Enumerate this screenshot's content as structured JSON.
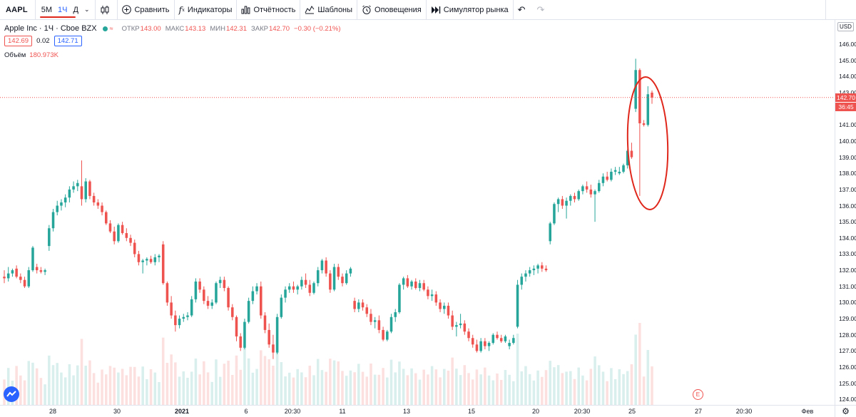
{
  "toolbar": {
    "symbol": "AAPL",
    "timeframes": [
      "5М",
      "1Ч",
      "Д"
    ],
    "active_timeframe_index": 1,
    "compare_label": "Сравнить",
    "indicators_label": "Индикаторы",
    "financials_label": "Отчётность",
    "templates_label": "Шаблоны",
    "alerts_label": "Оповещения",
    "simulator_label": "Симулятор рынка"
  },
  "legend": {
    "title": "Apple Inc · 1Ч · Cboe BZX",
    "open_label": "ОТКР",
    "open": "143.00",
    "high_label": "МАКС",
    "high": "143.13",
    "low_label": "МИН",
    "low": "142.31",
    "close_label": "ЗАКР",
    "close": "142.70",
    "change": "−0.30 (−0.21%)",
    "bid": "142.69",
    "spread": "0.02",
    "ask": "142.71",
    "volume_label": "Объём",
    "volume": "180.973K"
  },
  "price_axis": {
    "currency": "USD",
    "ticks": [
      "146.00",
      "145.00",
      "144.00",
      "143.00",
      "142.00",
      "141.00",
      "140.00",
      "139.00",
      "138.00",
      "137.00",
      "136.00",
      "135.00",
      "134.00",
      "133.00",
      "132.00",
      "131.00",
      "130.00",
      "129.00",
      "128.00",
      "127.00",
      "126.00",
      "125.00",
      "124.00"
    ],
    "last_price": "142.70",
    "countdown": "36:45"
  },
  "time_axis": {
    "ticks": [
      "28",
      "30",
      "2021",
      "6",
      "20:30",
      "11",
      "13",
      "15",
      "20",
      "20:30",
      "25",
      "27",
      "20:30",
      "Фев"
    ]
  },
  "event_marker": "E",
  "colors": {
    "up": "#26a69a",
    "down": "#ef5350",
    "accent": "#2962ff",
    "annotation": "#e0271b"
  },
  "chart_data": {
    "type": "candlestick",
    "series_name": "AAPL 1Ч",
    "ylim": [
      124,
      146.5
    ],
    "x_labels": [
      "28",
      "30",
      "2021",
      "6",
      "20:30",
      "11",
      "13",
      "15",
      "20",
      "20:30",
      "25",
      "27",
      "20:30",
      "Фев"
    ],
    "candles": [
      [
        131.6,
        132.0,
        131.2,
        131.5
      ],
      [
        131.5,
        132.2,
        131.3,
        131.8
      ],
      [
        131.8,
        132.1,
        131.6,
        132.0
      ],
      [
        132.1,
        132.3,
        131.5,
        131.6
      ],
      [
        131.6,
        131.8,
        131.2,
        131.4
      ],
      [
        131.4,
        131.6,
        130.9,
        131.0
      ],
      [
        131.0,
        132.2,
        130.9,
        132.0
      ],
      [
        132.0,
        133.5,
        131.9,
        133.4
      ],
      [
        132.2,
        132.4,
        131.8,
        132.0
      ],
      [
        132.0,
        132.2,
        131.8,
        131.9
      ],
      [
        131.9,
        132.1,
        131.7,
        132.0
      ],
      [
        133.5,
        134.8,
        133.2,
        134.6
      ],
      [
        134.6,
        135.8,
        134.4,
        135.6
      ],
      [
        135.6,
        136.3,
        135.4,
        136.0
      ],
      [
        136.0,
        136.4,
        135.7,
        136.2
      ],
      [
        136.2,
        136.7,
        135.9,
        136.5
      ],
      [
        136.5,
        137.2,
        136.2,
        137.0
      ],
      [
        137.0,
        137.5,
        136.8,
        137.2
      ],
      [
        137.2,
        137.6,
        136.9,
        137.4
      ],
      [
        137.2,
        138.8,
        136.0,
        136.4
      ],
      [
        136.4,
        137.7,
        136.2,
        137.5
      ],
      [
        137.5,
        137.6,
        136.4,
        136.6
      ],
      [
        136.6,
        136.8,
        136.0,
        136.2
      ],
      [
        136.2,
        136.4,
        135.8,
        136.0
      ],
      [
        136.0,
        136.2,
        135.4,
        135.6
      ],
      [
        135.6,
        135.7,
        134.8,
        134.9
      ],
      [
        134.9,
        135.1,
        134.3,
        134.4
      ],
      [
        134.4,
        134.7,
        133.6,
        133.8
      ],
      [
        133.8,
        134.9,
        133.7,
        134.8
      ],
      [
        134.8,
        135.0,
        134.2,
        134.3
      ],
      [
        134.3,
        134.6,
        133.8,
        134.0
      ],
      [
        134.0,
        134.2,
        133.5,
        133.7
      ],
      [
        133.7,
        133.9,
        132.8,
        133.0
      ],
      [
        133.0,
        133.2,
        132.3,
        132.5
      ],
      [
        132.5,
        132.7,
        131.8,
        132.6
      ],
      [
        132.6,
        132.8,
        132.3,
        132.7
      ],
      [
        132.7,
        132.9,
        132.4,
        132.5
      ],
      [
        132.5,
        133.0,
        132.3,
        132.8
      ],
      [
        132.8,
        133.0,
        132.5,
        132.9
      ],
      [
        133.6,
        133.8,
        131.1,
        131.2
      ],
      [
        131.2,
        131.3,
        129.8,
        130.0
      ],
      [
        130.0,
        130.4,
        129.0,
        129.2
      ],
      [
        129.2,
        129.5,
        128.2,
        128.6
      ],
      [
        128.6,
        129.2,
        128.4,
        129.0
      ],
      [
        129.0,
        129.3,
        128.8,
        129.1
      ],
      [
        129.1,
        129.4,
        128.9,
        129.2
      ],
      [
        129.2,
        130.4,
        129.1,
        130.2
      ],
      [
        130.2,
        131.5,
        130.0,
        131.3
      ],
      [
        131.3,
        131.5,
        130.6,
        130.8
      ],
      [
        130.8,
        131.0,
        129.9,
        130.1
      ],
      [
        130.1,
        130.4,
        129.6,
        129.8
      ],
      [
        129.8,
        130.2,
        129.6,
        130.0
      ],
      [
        130.0,
        131.3,
        129.9,
        131.2
      ],
      [
        131.2,
        131.6,
        130.9,
        131.4
      ],
      [
        131.4,
        131.6,
        130.7,
        130.9
      ],
      [
        130.9,
        131.0,
        129.5,
        129.7
      ],
      [
        129.7,
        129.9,
        128.9,
        129.1
      ],
      [
        129.1,
        129.2,
        127.6,
        127.9
      ],
      [
        127.9,
        128.1,
        127.0,
        127.2
      ],
      [
        127.2,
        129.0,
        127.1,
        128.8
      ],
      [
        128.8,
        130.3,
        128.7,
        130.1
      ],
      [
        130.1,
        131.0,
        129.9,
        130.7
      ],
      [
        130.7,
        131.2,
        130.5,
        131.0
      ],
      [
        131.0,
        131.3,
        129.0,
        129.2
      ],
      [
        129.2,
        129.4,
        128.1,
        128.3
      ],
      [
        128.3,
        128.7,
        127.2,
        127.4
      ],
      [
        127.4,
        128.0,
        126.5,
        126.9
      ],
      [
        126.9,
        129.3,
        126.8,
        129.1
      ],
      [
        129.1,
        130.5,
        129.0,
        130.3
      ],
      [
        130.3,
        131.0,
        130.0,
        130.8
      ],
      [
        130.8,
        131.2,
        130.6,
        131.0
      ],
      [
        131.0,
        131.3,
        130.6,
        130.8
      ],
      [
        130.8,
        131.1,
        130.5,
        131.0
      ],
      [
        131.0,
        131.6,
        130.8,
        131.4
      ],
      [
        131.4,
        131.8,
        130.9,
        131.1
      ],
      [
        131.1,
        131.4,
        130.4,
        130.6
      ],
      [
        130.6,
        131.3,
        130.5,
        131.2
      ],
      [
        131.2,
        132.2,
        131.0,
        132.0
      ],
      [
        132.0,
        132.7,
        131.8,
        132.6
      ],
      [
        132.6,
        132.8,
        131.6,
        131.8
      ],
      [
        131.8,
        132.0,
        130.6,
        130.8
      ],
      [
        130.8,
        132.4,
        130.7,
        132.2
      ],
      [
        132.2,
        132.4,
        131.4,
        131.6
      ],
      [
        131.6,
        131.8,
        131.0,
        131.2
      ],
      [
        131.2,
        132.0,
        131.1,
        131.8
      ],
      [
        131.8,
        132.2,
        131.6,
        132.1
      ],
      [
        130.1,
        130.3,
        129.4,
        129.6
      ],
      [
        129.6,
        130.2,
        129.4,
        130.0
      ],
      [
        130.0,
        130.2,
        129.5,
        129.7
      ],
      [
        129.7,
        129.9,
        129.1,
        129.3
      ],
      [
        129.3,
        129.6,
        128.6,
        128.8
      ],
      [
        128.8,
        129.1,
        128.4,
        128.9
      ],
      [
        128.9,
        129.2,
        128.1,
        128.3
      ],
      [
        128.3,
        128.5,
        127.6,
        127.7
      ],
      [
        127.7,
        128.3,
        127.6,
        128.2
      ],
      [
        128.2,
        129.3,
        128.1,
        129.1
      ],
      [
        129.1,
        129.6,
        128.8,
        129.4
      ],
      [
        129.4,
        131.2,
        129.3,
        131.1
      ],
      [
        131.1,
        131.6,
        130.8,
        131.5
      ],
      [
        131.5,
        131.7,
        130.9,
        131.0
      ],
      [
        131.0,
        131.4,
        130.8,
        131.3
      ],
      [
        131.3,
        131.5,
        130.8,
        130.9
      ],
      [
        130.9,
        131.4,
        130.7,
        131.2
      ],
      [
        131.2,
        131.4,
        130.7,
        130.8
      ],
      [
        130.8,
        131.0,
        130.2,
        130.4
      ],
      [
        130.4,
        130.8,
        130.1,
        130.5
      ],
      [
        130.5,
        130.7,
        129.8,
        130.0
      ],
      [
        130.0,
        130.2,
        129.4,
        129.6
      ],
      [
        129.6,
        130.0,
        129.3,
        129.8
      ],
      [
        129.8,
        130.0,
        129.0,
        129.2
      ],
      [
        129.2,
        129.5,
        128.3,
        128.5
      ],
      [
        128.5,
        128.8,
        127.9,
        128.6
      ],
      [
        128.6,
        129.3,
        128.4,
        128.7
      ],
      [
        128.7,
        128.9,
        128.0,
        128.2
      ],
      [
        128.2,
        128.4,
        127.6,
        127.8
      ],
      [
        127.8,
        128.0,
        127.2,
        127.4
      ],
      [
        127.4,
        127.7,
        126.9,
        127.0
      ],
      [
        127.0,
        127.8,
        126.9,
        127.6
      ],
      [
        127.6,
        127.8,
        127.1,
        127.3
      ],
      [
        127.3,
        127.6,
        127.0,
        127.5
      ],
      [
        127.5,
        128.1,
        127.4,
        128.0
      ],
      [
        128.0,
        128.2,
        127.7,
        127.8
      ],
      [
        127.8,
        128.0,
        127.5,
        127.6
      ],
      [
        127.6,
        128.0,
        127.5,
        127.9
      ],
      [
        127.3,
        127.7,
        127.1,
        127.5
      ],
      [
        127.5,
        128.0,
        127.4,
        127.8
      ],
      [
        128.5,
        131.4,
        128.4,
        131.1
      ],
      [
        131.1,
        131.8,
        130.8,
        131.6
      ],
      [
        131.6,
        132.0,
        131.3,
        131.8
      ],
      [
        131.8,
        132.2,
        131.6,
        132.0
      ],
      [
        132.0,
        132.3,
        131.7,
        132.1
      ],
      [
        132.1,
        132.4,
        131.8,
        132.3
      ],
      [
        132.3,
        132.5,
        131.9,
        132.1
      ],
      [
        132.1,
        132.3,
        131.9,
        132.0
      ],
      [
        133.8,
        135.0,
        133.6,
        134.9
      ],
      [
        134.9,
        136.2,
        134.8,
        136.1
      ],
      [
        136.1,
        136.5,
        135.6,
        136.4
      ],
      [
        136.4,
        136.6,
        135.8,
        136.0
      ],
      [
        136.0,
        136.5,
        135.2,
        136.3
      ],
      [
        136.3,
        136.7,
        136.0,
        136.6
      ],
      [
        136.6,
        136.8,
        136.2,
        136.4
      ],
      [
        136.4,
        137.0,
        136.3,
        136.9
      ],
      [
        136.9,
        137.3,
        136.7,
        137.2
      ],
      [
        137.2,
        137.5,
        136.8,
        137.0
      ],
      [
        137.0,
        137.3,
        136.5,
        136.7
      ],
      [
        136.7,
        137.0,
        135.0,
        136.9
      ],
      [
        136.9,
        137.6,
        136.8,
        137.4
      ],
      [
        137.4,
        138.0,
        137.2,
        137.8
      ],
      [
        137.8,
        138.1,
        137.5,
        137.6
      ],
      [
        137.6,
        138.3,
        137.5,
        138.1
      ],
      [
        138.1,
        138.4,
        137.9,
        138.2
      ],
      [
        138.0,
        138.4,
        137.9,
        138.1
      ],
      [
        138.1,
        138.6,
        138.0,
        138.5
      ],
      [
        138.5,
        139.5,
        138.3,
        139.4
      ],
      [
        139.4,
        139.9,
        138.9,
        139.0
      ],
      [
        142.0,
        145.1,
        141.8,
        144.4
      ],
      [
        144.4,
        144.5,
        136.6,
        141.1
      ],
      [
        141.1,
        141.3,
        140.9,
        141.0
      ],
      [
        141.0,
        143.4,
        140.9,
        142.9
      ],
      [
        143.0,
        143.13,
        142.31,
        142.7
      ]
    ]
  }
}
